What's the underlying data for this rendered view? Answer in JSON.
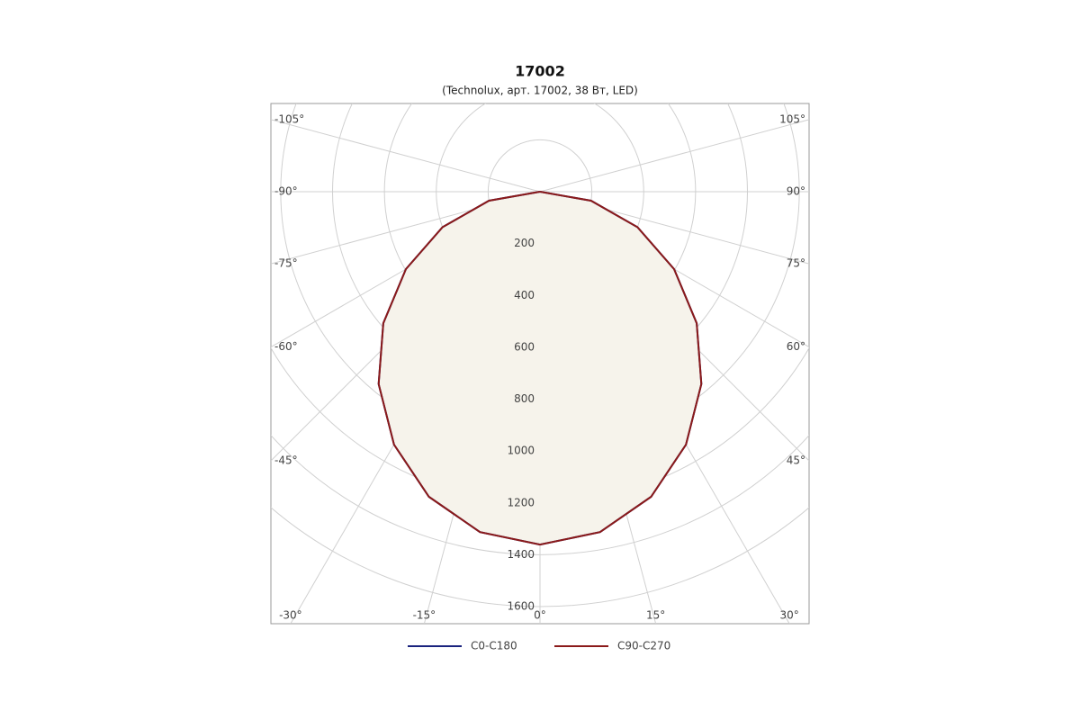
{
  "chart_data": {
    "type": "polar",
    "title": "17002",
    "subtitle": "(Technolux, арт. 17002, 38 Вт, LED)",
    "theta": [
      -90,
      -80,
      -70,
      -60,
      -50,
      -40,
      -30,
      -20,
      -10,
      0,
      10,
      20,
      30,
      40,
      50,
      60,
      70,
      80,
      90
    ],
    "series": [
      {
        "name": "C0-C180",
        "color": "#1a237e",
        "values": [
          0,
          200,
          400,
          597,
          789,
          968,
          1126,
          1252,
          1333,
          1361,
          1333,
          1252,
          1126,
          968,
          789,
          597,
          400,
          200,
          0
        ]
      },
      {
        "name": "C90-C270",
        "color": "#8b1a1a",
        "values": [
          0,
          200,
          400,
          597,
          789,
          968,
          1126,
          1252,
          1333,
          1361,
          1333,
          1252,
          1126,
          968,
          789,
          597,
          400,
          200,
          0
        ]
      }
    ],
    "rlim": [
      0,
      1600
    ],
    "rticks": [
      200,
      400,
      600,
      800,
      1000,
      1200,
      1400,
      1600
    ],
    "thetaticks": [
      {
        "value": -105,
        "label": "-105°"
      },
      {
        "value": -90,
        "label": "-90°"
      },
      {
        "value": -75,
        "label": "-75°"
      },
      {
        "value": -60,
        "label": "-60°"
      },
      {
        "value": -45,
        "label": "-45°"
      },
      {
        "value": -30,
        "label": "-30°"
      },
      {
        "value": -15,
        "label": "-15°"
      },
      {
        "value": 0,
        "label": "0°"
      },
      {
        "value": 15,
        "label": "15°"
      },
      {
        "value": 30,
        "label": "30°"
      },
      {
        "value": 45,
        "label": "45°"
      },
      {
        "value": 60,
        "label": "60°"
      },
      {
        "value": 75,
        "label": "75°"
      },
      {
        "value": 90,
        "label": "90°"
      },
      {
        "value": 105,
        "label": "105°"
      }
    ],
    "fill": "#f6f3eb",
    "grid": true
  }
}
